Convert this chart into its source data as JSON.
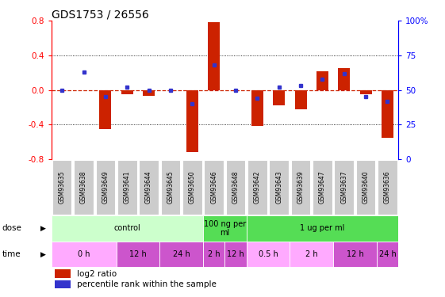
{
  "title": "GDS1753 / 26556",
  "samples": [
    "GSM93635",
    "GSM93638",
    "GSM93649",
    "GSM93641",
    "GSM93644",
    "GSM93645",
    "GSM93650",
    "GSM93646",
    "GSM93648",
    "GSM93642",
    "GSM93643",
    "GSM93639",
    "GSM93647",
    "GSM93637",
    "GSM93640",
    "GSM93636"
  ],
  "log2_ratio": [
    0.0,
    0.0,
    -0.45,
    -0.05,
    -0.07,
    0.0,
    -0.72,
    0.78,
    0.0,
    -0.42,
    -0.18,
    -0.22,
    0.22,
    0.25,
    -0.05,
    -0.55
  ],
  "percentile": [
    50,
    63,
    45,
    52,
    50,
    50,
    40,
    68,
    50,
    44,
    52,
    53,
    58,
    62,
    45,
    42
  ],
  "ylim": [
    -0.8,
    0.8
  ],
  "yticks_left": [
    -0.8,
    -0.4,
    0.0,
    0.4,
    0.8
  ],
  "yticks_right": [
    0,
    25,
    50,
    75,
    100
  ],
  "bar_color": "#cc2200",
  "dot_color": "#3333cc",
  "zeroline_color": "#cc2200",
  "grid_color": "#000000",
  "sample_box_color": "#cccccc",
  "dose_groups": [
    {
      "label": "control",
      "start": 0,
      "end": 7,
      "color": "#ccffcc"
    },
    {
      "label": "100 ng per\nml",
      "start": 7,
      "end": 9,
      "color": "#55dd55"
    },
    {
      "label": "1 ug per ml",
      "start": 9,
      "end": 16,
      "color": "#55dd55"
    }
  ],
  "time_groups": [
    {
      "label": "0 h",
      "start": 0,
      "end": 3,
      "color": "#ffaaff"
    },
    {
      "label": "12 h",
      "start": 3,
      "end": 5,
      "color": "#cc55cc"
    },
    {
      "label": "24 h",
      "start": 5,
      "end": 7,
      "color": "#cc55cc"
    },
    {
      "label": "2 h",
      "start": 7,
      "end": 8,
      "color": "#cc55cc"
    },
    {
      "label": "12 h",
      "start": 8,
      "end": 9,
      "color": "#cc55cc"
    },
    {
      "label": "0.5 h",
      "start": 9,
      "end": 11,
      "color": "#ffaaff"
    },
    {
      "label": "2 h",
      "start": 11,
      "end": 13,
      "color": "#ffaaff"
    },
    {
      "label": "12 h",
      "start": 13,
      "end": 15,
      "color": "#cc55cc"
    },
    {
      "label": "24 h",
      "start": 15,
      "end": 16,
      "color": "#cc55cc"
    }
  ],
  "legend_bar_label": "log2 ratio",
  "legend_dot_label": "percentile rank within the sample",
  "dose_label": "dose",
  "time_label": "time",
  "tick_label_color": "#444444",
  "title_fontsize": 10
}
